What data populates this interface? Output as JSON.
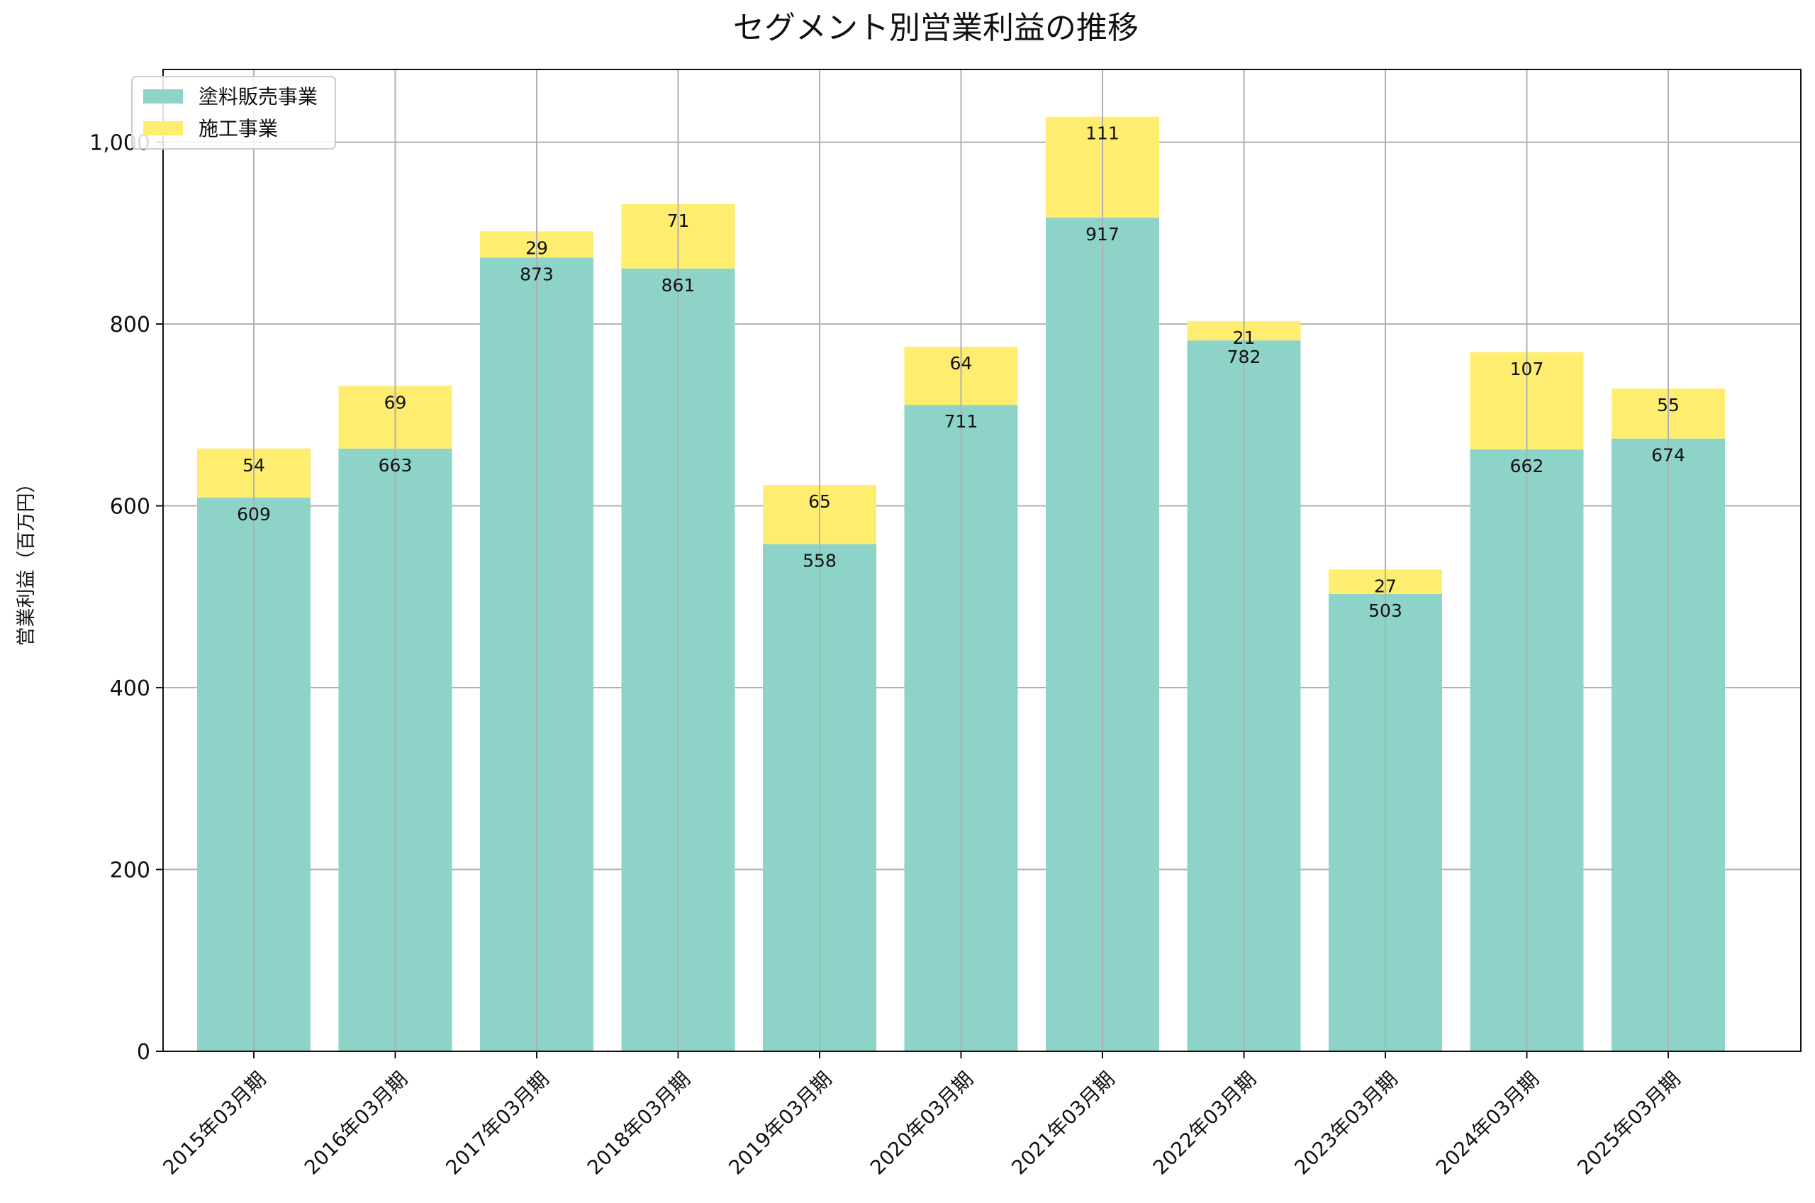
{
  "chart_data": {
    "type": "bar",
    "stacked": true,
    "title": "セグメント別営業利益の推移",
    "ylabel": "営業利益（百万円）",
    "xlabel": "",
    "ylim": [
      0,
      1080
    ],
    "yticks": [
      0,
      200,
      400,
      600,
      800,
      1000
    ],
    "ytick_labels": [
      "0",
      "200",
      "400",
      "600",
      "800",
      "1,000"
    ],
    "grid": true,
    "legend_position": "top-left",
    "categories": [
      "2015年03月期",
      "2016年03月期",
      "2017年03月期",
      "2018年03月期",
      "2019年03月期",
      "2020年03月期",
      "2021年03月期",
      "2022年03月期",
      "2023年03月期",
      "2024年03月期",
      "2025年03月期"
    ],
    "series": [
      {
        "name": "塗料販売事業",
        "color": "#8ed3c7",
        "values": [
          609,
          663,
          873,
          861,
          558,
          711,
          917,
          782,
          503,
          662,
          674
        ]
      },
      {
        "name": "施工事業",
        "color": "#ffed6f",
        "values": [
          54,
          69,
          29,
          71,
          65,
          64,
          111,
          21,
          27,
          107,
          55
        ]
      }
    ]
  }
}
